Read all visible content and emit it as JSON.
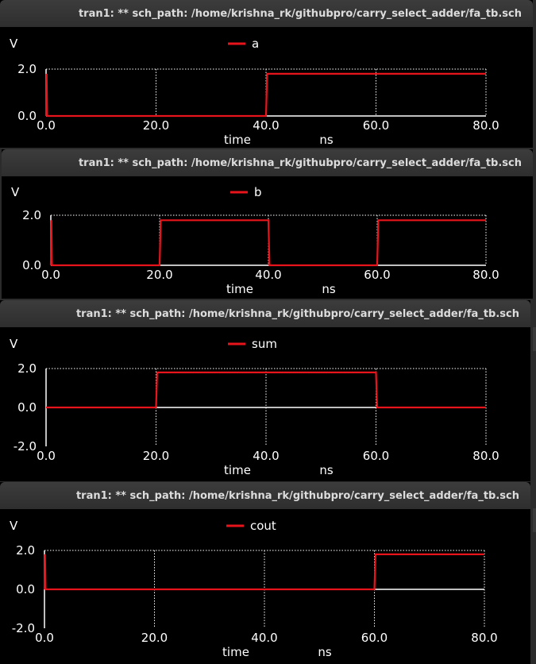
{
  "windows": [
    {
      "title": "tran1: ** sch_path: /home/krishna_rk/githubpro/carry_select_adder/fa_tb.sch"
    },
    {
      "title": "tran1: ** sch_path: /home/krishna_rk/githubpro/carry_select_adder/fa_tb.sch"
    },
    {
      "title": "tran1: ** sch_path: /home/krishna_rk/githubpro/carry_select_adder/fa_tb.sch"
    },
    {
      "title": "tran1: ** sch_path: /home/krishna_rk/githubpro/carry_select_adder/fa_tb.sch"
    }
  ],
  "colors": {
    "background": "#000000",
    "grid": "#ffffff",
    "signal": "#e8141c",
    "zero_trace": "#ffffff",
    "text": "#ffffff"
  },
  "chart_data": [
    {
      "type": "line",
      "ylabel": "V",
      "xlabel": "time",
      "xunit": "ns",
      "xlim": [
        0,
        80
      ],
      "ylim": [
        0,
        2
      ],
      "xticks": [
        "0.0",
        "20.0",
        "40.0",
        "60.0",
        "80.0"
      ],
      "yticks": [
        "2.0",
        "0.0"
      ],
      "yticks_values": [
        2,
        0
      ],
      "series": [
        {
          "name": "a",
          "x": [
            0,
            0.1,
            0.2,
            40,
            40.2,
            80
          ],
          "y": [
            0,
            1.8,
            0,
            0,
            1.8,
            1.8
          ]
        }
      ]
    },
    {
      "type": "line",
      "ylabel": "V",
      "xlabel": "time",
      "xunit": "ns",
      "xlim": [
        0,
        80
      ],
      "ylim": [
        0,
        2
      ],
      "xticks": [
        "0.0",
        "20.0",
        "40.0",
        "60.0",
        "80.0"
      ],
      "yticks": [
        "2.0",
        "0.0"
      ],
      "yticks_values": [
        2,
        0
      ],
      "series": [
        {
          "name": "b",
          "x": [
            0,
            0.1,
            0.2,
            20,
            20.2,
            40,
            40.2,
            60,
            60.2,
            80
          ],
          "y": [
            0,
            1.8,
            0,
            0,
            1.8,
            1.8,
            0,
            0,
            1.8,
            1.8
          ]
        }
      ]
    },
    {
      "type": "line",
      "ylabel": "V",
      "xlabel": "time",
      "xunit": "ns",
      "xlim": [
        0,
        80
      ],
      "ylim": [
        -2,
        2
      ],
      "xticks": [
        "0.0",
        "20.0",
        "40.0",
        "60.0",
        "80.0"
      ],
      "yticks": [
        "2.0",
        "0.0",
        "-2.0"
      ],
      "yticks_values": [
        2,
        0,
        -2
      ],
      "series": [
        {
          "name": "sum",
          "x": [
            0,
            20,
            20.2,
            60,
            60.2,
            80
          ],
          "y": [
            0,
            0,
            1.8,
            1.8,
            0,
            0
          ]
        }
      ]
    },
    {
      "type": "line",
      "ylabel": "V",
      "xlabel": "time",
      "xunit": "ns",
      "xlim": [
        0,
        80
      ],
      "ylim": [
        -2,
        2
      ],
      "xticks": [
        "0.0",
        "20.0",
        "40.0",
        "60.0",
        "80.0"
      ],
      "yticks": [
        "2.0",
        "0.0",
        "-2.0"
      ],
      "yticks_values": [
        2,
        0,
        -2
      ],
      "series": [
        {
          "name": "cout",
          "x": [
            0,
            0.1,
            0.2,
            60,
            60.2,
            80
          ],
          "y": [
            0,
            1.8,
            0,
            0,
            1.8,
            1.8
          ]
        }
      ]
    }
  ]
}
